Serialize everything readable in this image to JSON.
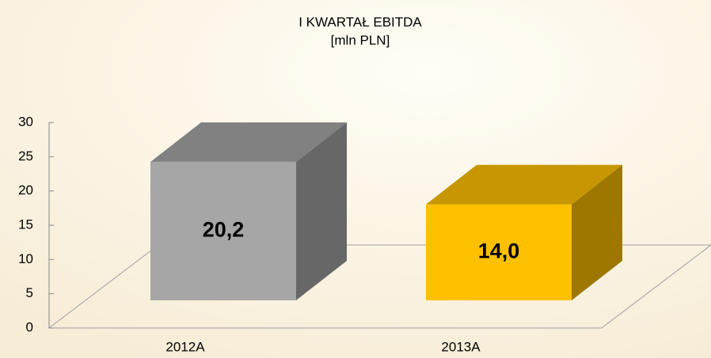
{
  "chart_data": {
    "type": "bar3d",
    "title": "I KWARTAŁ  EBITDA",
    "subtitle": "[mln PLN]",
    "categories": [
      "2012A",
      "2013A"
    ],
    "values": [
      20.2,
      14.0
    ],
    "value_labels": [
      "20,2",
      "14,0"
    ],
    "colors": [
      "#a6a6a6",
      "#ffc000"
    ],
    "ylim": [
      0,
      30
    ],
    "yticks": [
      0,
      5,
      10,
      15,
      20,
      25,
      30
    ]
  }
}
